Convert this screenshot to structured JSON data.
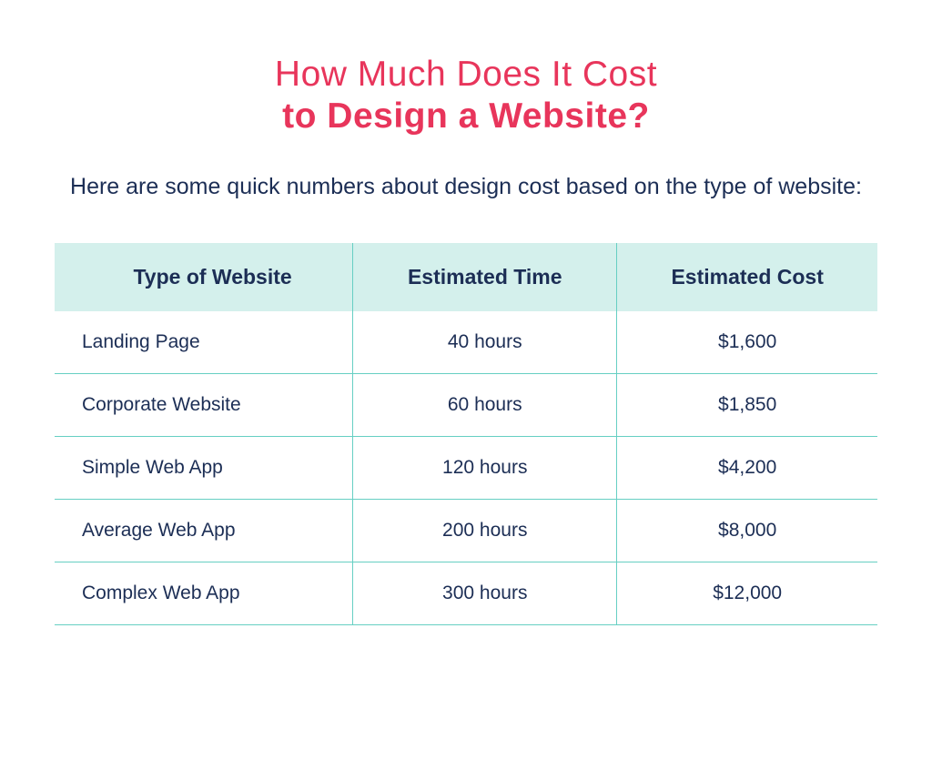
{
  "title": {
    "line1": "How Much Does It Cost",
    "line2": "to Design a Website?",
    "color": "#e8355b",
    "fontsize_pt": 39,
    "line1_weight": 400,
    "line2_weight": 700
  },
  "subtitle": {
    "text": "Here are some quick numbers about design cost based on the type of website:",
    "color": "#1c2e55",
    "fontsize_pt": 25
  },
  "table": {
    "type": "table",
    "header_bg": "#d4f0ec",
    "header_text_color": "#1c2e55",
    "cell_text_color": "#1c2e55",
    "border_color": "#66cfc3",
    "header_fontsize_pt": 23,
    "cell_fontsize_pt": 21,
    "columns": [
      {
        "label": "Type of Website",
        "align": "left"
      },
      {
        "label": "Estimated Time",
        "align": "center"
      },
      {
        "label": "Estimated Cost",
        "align": "center"
      }
    ],
    "rows": [
      {
        "type": "Landing Page",
        "time": "40 hours",
        "cost": "$1,600"
      },
      {
        "type": "Corporate Website",
        "time": "60 hours",
        "cost": "$1,850"
      },
      {
        "type": "Simple Web App",
        "time": "120 hours",
        "cost": "$4,200"
      },
      {
        "type": "Average Web App",
        "time": "200 hours",
        "cost": "$8,000"
      },
      {
        "type": "Complex Web App",
        "time": "300 hours",
        "cost": "$12,000"
      }
    ]
  },
  "background_color": "#ffffff"
}
